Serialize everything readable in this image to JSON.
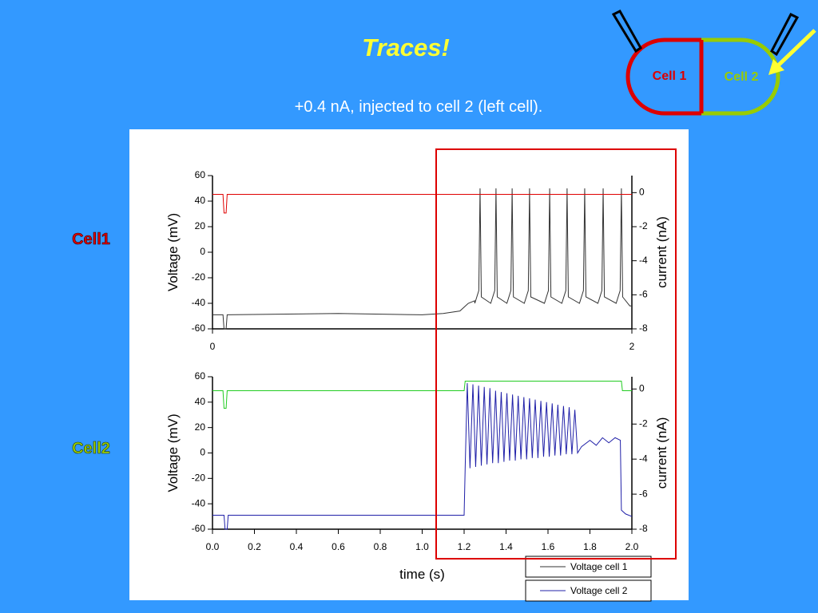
{
  "slide": {
    "title": "Traces!",
    "subtitle": "+0.4 nA, injected to cell 2 (left cell).",
    "row_labels": [
      "Cell1",
      "Cell2"
    ],
    "diagram_labels": [
      "Cell 1",
      "Cell 2"
    ]
  },
  "chart_data": [
    {
      "type": "line",
      "ylabel": "Voltage (mV)",
      "y2label": "current (nA)",
      "xlim": [
        0,
        2
      ],
      "xticks": [
        0,
        2
      ],
      "ylim": [
        -60,
        60
      ],
      "yticks": [
        -60,
        -40,
        -20,
        0,
        20,
        40,
        60
      ],
      "y2lim": [
        -8,
        1
      ],
      "y2ticks": [
        -8,
        -6,
        -4,
        -2,
        0
      ],
      "series": [
        {
          "name": "Voltage cell 1",
          "color": "#333333",
          "x": [
            0,
            0.05,
            0.055,
            0.065,
            0.07,
            0.6,
            1.0,
            1.1,
            1.18,
            1.22,
            1.25,
            1.251,
            1.27,
            1.276,
            1.282,
            1.327,
            1.346,
            1.352,
            1.358,
            1.404,
            1.423,
            1.429,
            1.435,
            1.487,
            1.506,
            1.512,
            1.518,
            1.583,
            1.602,
            1.608,
            1.614,
            1.666,
            1.685,
            1.691,
            1.697,
            1.75,
            1.769,
            1.775,
            1.781,
            1.838,
            1.857,
            1.863,
            1.869,
            1.925,
            1.944,
            1.95,
            1.956,
            1.99,
            2.0
          ],
          "values": [
            -49,
            -49,
            -60,
            -60,
            -49,
            -48,
            -49,
            -48,
            -46,
            -40,
            -38,
            -40,
            -30,
            50,
            -35,
            -40,
            -30,
            50,
            -35,
            -40,
            -30,
            50,
            -35,
            -40,
            -30,
            50,
            -35,
            -40,
            -30,
            50,
            -35,
            -40,
            -30,
            50,
            -35,
            -40,
            -30,
            50,
            -35,
            -40,
            -30,
            50,
            -35,
            -40,
            -30,
            50,
            -35,
            -42,
            -42
          ]
        },
        {
          "color": "#e00000",
          "axis": "y2",
          "x": [
            0,
            0.05,
            0.055,
            0.065,
            0.07,
            2.0
          ],
          "values": [
            -0.1,
            -0.1,
            -1.2,
            -1.2,
            -0.1,
            -0.1
          ]
        }
      ]
    },
    {
      "type": "line",
      "ylabel": "Voltage (mV)",
      "y2label": "current (nA)",
      "xlabel": "time (s)",
      "xlim": [
        0,
        2
      ],
      "xticks": [
        {
          "value": 0,
          "label": "0.0"
        },
        0.2,
        0.4,
        0.6,
        0.8,
        {
          "value": 1,
          "label": "1.0"
        },
        1.2,
        1.4,
        1.6,
        1.8,
        {
          "value": 2,
          "label": "2.0"
        }
      ],
      "ylim": [
        -60,
        60
      ],
      "yticks": [
        -60,
        -40,
        -20,
        0,
        20,
        40,
        60
      ],
      "y2lim": [
        -8,
        0.7
      ],
      "y2ticks": [
        -8,
        -6,
        -4,
        -2,
        0
      ],
      "series": [
        {
          "name": "Voltage cell 2",
          "color": "#2020a8",
          "x": [
            0,
            0.055,
            0.06,
            0.07,
            0.075,
            0.6,
            1.19,
            1.2,
            1.205,
            1.215,
            1.228,
            1.242,
            1.255,
            1.269,
            1.282,
            1.296,
            1.309,
            1.323,
            1.336,
            1.35,
            1.363,
            1.377,
            1.39,
            1.404,
            1.417,
            1.431,
            1.444,
            1.458,
            1.471,
            1.485,
            1.498,
            1.512,
            1.525,
            1.539,
            1.552,
            1.566,
            1.579,
            1.593,
            1.606,
            1.62,
            1.633,
            1.647,
            1.66,
            1.674,
            1.687,
            1.701,
            1.714,
            1.728,
            1.741,
            1.76,
            1.8,
            1.83,
            1.86,
            1.89,
            1.92,
            1.945,
            1.95,
            1.97,
            2.0
          ],
          "values": [
            -49,
            -49,
            -60,
            -60,
            -49,
            -49,
            -49,
            -49,
            -12,
            55,
            -12,
            54,
            -11,
            53,
            -10,
            52,
            -9,
            51,
            -8,
            49,
            -8,
            48,
            -7,
            47,
            -6,
            46,
            -6,
            45,
            -5,
            44,
            -5,
            43,
            -4,
            42,
            -4,
            41,
            -3,
            40,
            -3,
            39,
            -2,
            38,
            -2,
            37,
            -1,
            36,
            -1,
            34,
            0,
            5,
            10,
            6,
            12,
            8,
            12,
            10,
            -45,
            -48,
            -50
          ]
        },
        {
          "color": "#22cc22",
          "axis": "y2",
          "x": [
            0,
            0.05,
            0.055,
            0.065,
            0.07,
            1.2,
            1.205,
            1.95,
            1.955,
            2.0
          ],
          "values": [
            -0.1,
            -0.1,
            -1.1,
            -1.1,
            -0.1,
            -0.1,
            0.45,
            0.45,
            -0.1,
            -0.1
          ]
        }
      ]
    }
  ]
}
